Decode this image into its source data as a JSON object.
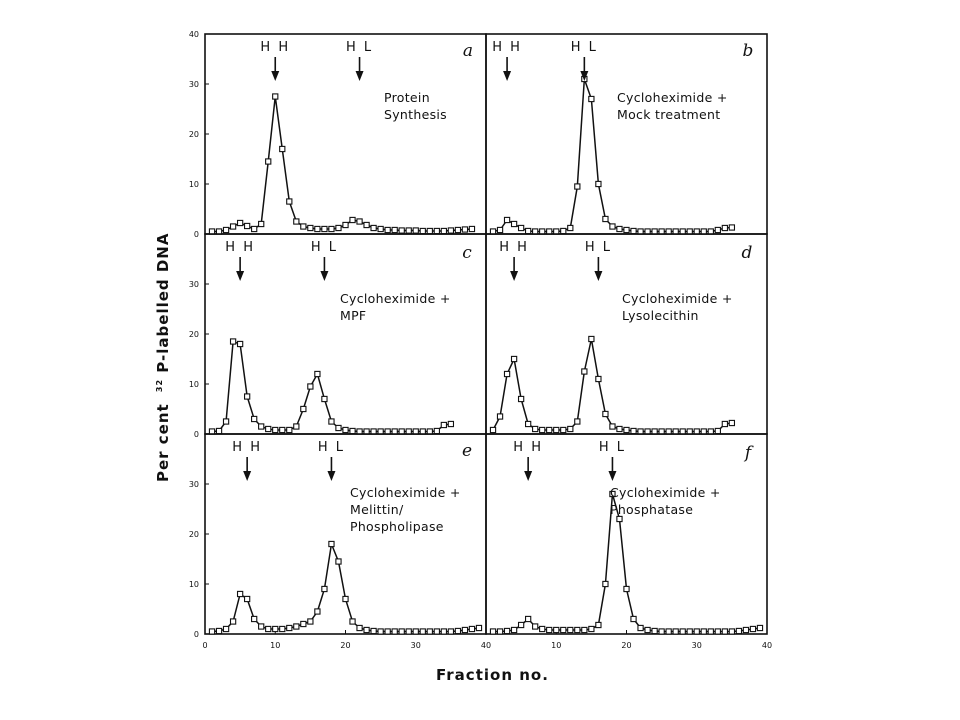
{
  "figure": {
    "ylabel_sup": "32",
    "ylabel": "P-labelled DNA",
    "ylabel_prefix": "Per cent",
    "xlabel": "Fraction no."
  },
  "chart_data": [
    {
      "type": "line",
      "panel": "a",
      "annotation": [
        "Protein",
        "Synthesis"
      ],
      "arrows": [
        {
          "label": "HH",
          "x": 10
        },
        {
          "label": "HL",
          "x": 22
        }
      ],
      "x": [
        1,
        2,
        3,
        4,
        5,
        6,
        7,
        8,
        9,
        10,
        11,
        12,
        13,
        14,
        15,
        16,
        17,
        18,
        19,
        20,
        21,
        22,
        23,
        24,
        25,
        26,
        27,
        28,
        29,
        30,
        31,
        32,
        33,
        34,
        35,
        36,
        37,
        38
      ],
      "values": [
        0.5,
        0.5,
        0.8,
        1.5,
        2.2,
        1.6,
        1.0,
        2.0,
        14.5,
        27.5,
        17.0,
        6.5,
        2.5,
        1.5,
        1.2,
        1.0,
        1.0,
        1.0,
        1.2,
        1.8,
        2.8,
        2.5,
        1.8,
        1.2,
        1.0,
        0.8,
        0.8,
        0.7,
        0.7,
        0.7,
        0.6,
        0.6,
        0.6,
        0.6,
        0.7,
        0.8,
        0.9,
        1.0
      ],
      "xlim": [
        0,
        40
      ],
      "ylim": [
        0,
        40
      ],
      "yticks": [
        0,
        10,
        20,
        30,
        40
      ],
      "xticks": [
        0,
        10,
        20,
        30,
        40
      ]
    },
    {
      "type": "line",
      "panel": "b",
      "annotation": [
        "Cycloheximide +",
        "Mock treatment"
      ],
      "arrows": [
        {
          "label": "HH",
          "x": 3
        },
        {
          "label": "HL",
          "x": 14
        }
      ],
      "x": [
        1,
        2,
        3,
        4,
        5,
        6,
        7,
        8,
        9,
        10,
        11,
        12,
        13,
        14,
        15,
        16,
        17,
        18,
        19,
        20,
        21,
        22,
        23,
        24,
        25,
        26,
        27,
        28,
        29,
        30,
        31,
        32,
        33,
        34,
        35
      ],
      "values": [
        0.5,
        0.8,
        2.8,
        2.0,
        1.2,
        0.6,
        0.5,
        0.5,
        0.5,
        0.5,
        0.6,
        1.2,
        9.5,
        31.0,
        27.0,
        10.0,
        3.0,
        1.5,
        1.0,
        0.8,
        0.6,
        0.5,
        0.5,
        0.5,
        0.5,
        0.5,
        0.5,
        0.5,
        0.5,
        0.5,
        0.5,
        0.5,
        0.8,
        1.2,
        1.3
      ],
      "xlim": [
        0,
        40
      ],
      "ylim": [
        0,
        40
      ],
      "yticks": [
        0,
        10,
        20,
        30,
        40
      ],
      "xticks": [
        0,
        10,
        20,
        30,
        40
      ]
    },
    {
      "type": "line",
      "panel": "c",
      "annotation": [
        "Cycloheximide +",
        "MPF"
      ],
      "arrows": [
        {
          "label": "HH",
          "x": 5
        },
        {
          "label": "HL",
          "x": 17
        }
      ],
      "x": [
        1,
        2,
        3,
        4,
        5,
        6,
        7,
        8,
        9,
        10,
        11,
        12,
        13,
        14,
        15,
        16,
        17,
        18,
        19,
        20,
        21,
        22,
        23,
        24,
        25,
        26,
        27,
        28,
        29,
        30,
        31,
        32,
        33,
        34,
        35
      ],
      "values": [
        0.5,
        0.6,
        2.5,
        18.5,
        18.0,
        7.5,
        3.0,
        1.5,
        1.0,
        0.8,
        0.8,
        0.8,
        1.5,
        5.0,
        9.5,
        12.0,
        7.0,
        2.5,
        1.2,
        0.8,
        0.6,
        0.5,
        0.5,
        0.5,
        0.5,
        0.5,
        0.5,
        0.5,
        0.5,
        0.5,
        0.5,
        0.5,
        0.6,
        1.8,
        2.0
      ],
      "xlim": [
        0,
        40
      ],
      "ylim": [
        0,
        40
      ],
      "yticks": [
        0,
        10,
        20,
        30
      ],
      "xticks": [
        0,
        10,
        20,
        30,
        40
      ]
    },
    {
      "type": "line",
      "panel": "d",
      "annotation": [
        "Cycloheximide +",
        "Lysolecithin"
      ],
      "arrows": [
        {
          "label": "HH",
          "x": 4
        },
        {
          "label": "HL",
          "x": 16
        }
      ],
      "x": [
        1,
        2,
        3,
        4,
        5,
        6,
        7,
        8,
        9,
        10,
        11,
        12,
        13,
        14,
        15,
        16,
        17,
        18,
        19,
        20,
        21,
        22,
        23,
        24,
        25,
        26,
        27,
        28,
        29,
        30,
        31,
        32,
        33,
        34,
        35
      ],
      "values": [
        0.8,
        3.5,
        12.0,
        15.0,
        7.0,
        2.0,
        1.0,
        0.8,
        0.8,
        0.8,
        0.8,
        1.0,
        2.5,
        12.5,
        19.0,
        11.0,
        4.0,
        1.5,
        1.0,
        0.8,
        0.6,
        0.5,
        0.5,
        0.5,
        0.5,
        0.5,
        0.5,
        0.5,
        0.5,
        0.5,
        0.5,
        0.5,
        0.6,
        2.0,
        2.2
      ],
      "xlim": [
        0,
        40
      ],
      "ylim": [
        0,
        40
      ],
      "yticks": [
        0,
        10,
        20,
        30
      ],
      "xticks": [
        0,
        10,
        20,
        30,
        40
      ]
    },
    {
      "type": "line",
      "panel": "e",
      "annotation": [
        "Cycloheximide +",
        "Melittin/",
        "Phospholipase"
      ],
      "arrows": [
        {
          "label": "HH",
          "x": 6
        },
        {
          "label": "HL",
          "x": 18
        }
      ],
      "x": [
        1,
        2,
        3,
        4,
        5,
        6,
        7,
        8,
        9,
        10,
        11,
        12,
        13,
        14,
        15,
        16,
        17,
        18,
        19,
        20,
        21,
        22,
        23,
        24,
        25,
        26,
        27,
        28,
        29,
        30,
        31,
        32,
        33,
        34,
        35,
        36,
        37,
        38,
        39
      ],
      "values": [
        0.5,
        0.6,
        1.0,
        2.5,
        8.0,
        7.0,
        3.0,
        1.5,
        1.0,
        1.0,
        1.0,
        1.2,
        1.5,
        2.0,
        2.5,
        4.5,
        9.0,
        18.0,
        14.5,
        7.0,
        2.5,
        1.2,
        0.8,
        0.6,
        0.5,
        0.5,
        0.5,
        0.5,
        0.5,
        0.5,
        0.5,
        0.5,
        0.5,
        0.5,
        0.5,
        0.6,
        0.8,
        1.0,
        1.2
      ],
      "xlim": [
        0,
        40
      ],
      "ylim": [
        0,
        40
      ],
      "yticks": [
        0,
        10,
        20,
        30
      ],
      "xticks": [
        0,
        10,
        20,
        30,
        40
      ]
    },
    {
      "type": "line",
      "panel": "f",
      "annotation": [
        "Cycloheximide +",
        "Phosphatase"
      ],
      "arrows": [
        {
          "label": "HH",
          "x": 6
        },
        {
          "label": "HL",
          "x": 18
        }
      ],
      "x": [
        1,
        2,
        3,
        4,
        5,
        6,
        7,
        8,
        9,
        10,
        11,
        12,
        13,
        14,
        15,
        16,
        17,
        18,
        19,
        20,
        21,
        22,
        23,
        24,
        25,
        26,
        27,
        28,
        29,
        30,
        31,
        32,
        33,
        34,
        35,
        36,
        37,
        38,
        39
      ],
      "values": [
        0.5,
        0.5,
        0.6,
        0.8,
        1.8,
        3.0,
        1.5,
        1.0,
        0.8,
        0.8,
        0.8,
        0.8,
        0.8,
        0.8,
        1.0,
        1.8,
        10.0,
        28.0,
        23.0,
        9.0,
        3.0,
        1.2,
        0.8,
        0.6,
        0.5,
        0.5,
        0.5,
        0.5,
        0.5,
        0.5,
        0.5,
        0.5,
        0.5,
        0.5,
        0.5,
        0.6,
        0.8,
        1.0,
        1.2
      ],
      "xlim": [
        0,
        40
      ],
      "ylim": [
        0,
        40
      ],
      "yticks": [
        0,
        10,
        20,
        30
      ],
      "xticks": [
        0,
        10,
        20,
        30,
        40
      ]
    }
  ]
}
